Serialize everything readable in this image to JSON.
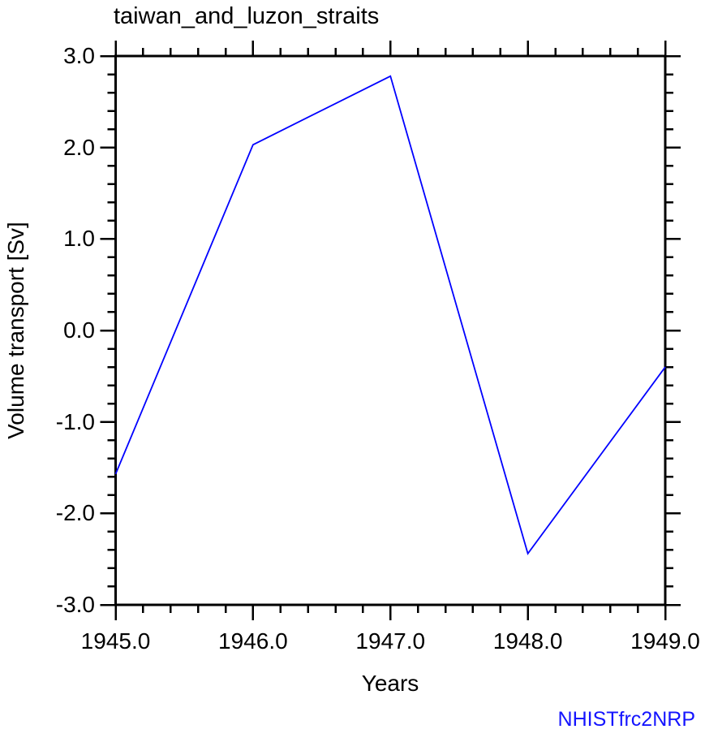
{
  "figure": {
    "background": "#ffffff"
  },
  "chart_data": {
    "type": "line",
    "title": "taiwan_and_luzon_straits",
    "xlabel": "Years",
    "ylabel": "Volume transport [Sv]",
    "annotation": "NHISTfrc2NRP",
    "x": [
      1945.0,
      1946.0,
      1947.0,
      1948.0,
      1949.0
    ],
    "series": [
      {
        "name": "NHISTfrc2NRP",
        "values": [
          -1.57,
          2.03,
          2.78,
          -2.44,
          -0.4
        ],
        "color": "#0000ff",
        "line_width": 1.8
      }
    ],
    "xlim": [
      1945.0,
      1949.0
    ],
    "ylim": [
      -3.0,
      3.0
    ],
    "x_major_ticks": [
      1945.0,
      1946.0,
      1947.0,
      1948.0,
      1949.0
    ],
    "x_tick_labels": [
      "1945.0",
      "1946.0",
      "1947.0",
      "1948.0",
      "1949.0"
    ],
    "y_major_ticks": [
      -3.0,
      -2.0,
      -1.0,
      0.0,
      1.0,
      2.0,
      3.0
    ],
    "y_tick_labels": [
      "-3.0",
      "-2.0",
      "-1.0",
      "0.0",
      "1.0",
      "2.0",
      "3.0"
    ],
    "x_minor_interval": 0.2,
    "y_minor_interval": 0.2,
    "grid": false,
    "legend_position": "none",
    "tick_style": "outward-all-four-sides",
    "colors": {
      "axis": "#000000",
      "text": "#000000",
      "annotation": "#1414ff"
    }
  }
}
